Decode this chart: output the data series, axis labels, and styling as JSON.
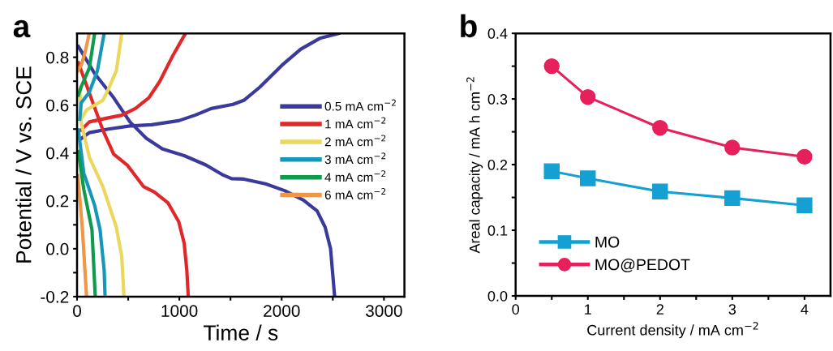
{
  "chart_data": [
    {
      "type": "line",
      "title": "a",
      "xlabel": "Time / s",
      "ylabel": "Potential / V vs. SCE",
      "xlim": [
        0,
        3200
      ],
      "ylim": [
        -0.2,
        0.9
      ],
      "xticks": [
        0,
        {
          "value": 500,
          "label": null
        },
        1000,
        {
          "value": 1500,
          "label": null
        },
        2000,
        {
          "value": 2500,
          "label": null
        },
        3000
      ],
      "yticks": [
        -0.2,
        {
          "value": -0.1,
          "label": null
        },
        {
          "value": 0,
          "label": "0.0"
        },
        {
          "value": 0.1,
          "label": null
        },
        0.2,
        {
          "value": 0.3,
          "label": null
        },
        0.4,
        {
          "value": 0.5,
          "label": null
        },
        0.6,
        {
          "value": 0.7,
          "label": null
        },
        0.8
      ],
      "grid": false,
      "legend": "right",
      "marker": "none",
      "line_style": "solid",
      "series": [
        {
          "name": "0.5 mA cm$^{−2}$",
          "color": "#3a3a9c",
          "x": [
            40,
            120,
            305,
            517,
            730,
            994,
            1153,
            1312,
            1524,
            1630,
            1789,
            2001,
            2187,
            2372,
            2558,
            null,
            13,
            172,
            358,
            517,
            676,
            835,
            1047,
            1259,
            1418,
            1511,
            1630,
            1842,
            2028,
            2213,
            2346,
            2425,
            2478,
            2518
          ],
          "values": [
            0.46,
            0.485,
            0.5,
            0.513,
            0.518,
            0.535,
            0.558,
            0.586,
            0.603,
            0.62,
            0.676,
            0.766,
            0.834,
            0.879,
            0.9,
            null,
            0.845,
            0.732,
            0.631,
            0.53,
            0.462,
            0.417,
            0.389,
            0.35,
            0.31,
            0.293,
            0.291,
            0.271,
            0.243,
            0.203,
            0.158,
            0.09,
            0.0,
            -0.2
          ]
        },
        {
          "name": "1 mA cm$^{−2}$",
          "color": "#e0282a",
          "x": [
            40,
            120,
            305,
            437,
            570,
            702,
            808,
            941,
            1060,
            null,
            13,
            146,
            252,
            358,
            490,
            649,
            755,
            888,
            994,
            1047,
            1073,
            1087
          ],
          "values": [
            0.496,
            0.53,
            0.547,
            0.558,
            0.586,
            0.631,
            0.699,
            0.811,
            0.9,
            null,
            0.777,
            0.62,
            0.496,
            0.395,
            0.35,
            0.26,
            0.237,
            0.192,
            0.113,
            0.023,
            -0.09,
            -0.2
          ]
        },
        {
          "name": "2 mA cm$^{−2}$",
          "color": "#ecd75e",
          "x": [
            40,
            93,
            252,
            305,
            384,
            437,
            null,
            27,
            40,
            120,
            252,
            305,
            384,
            437,
            459
          ],
          "values": [
            0.541,
            0.58,
            0.62,
            0.665,
            0.744,
            0.9,
            null,
            0.665,
            0.53,
            0.383,
            0.26,
            0.192,
            0.09,
            -0.033,
            -0.2
          ]
        },
        {
          "name": "3 mA cm$^{−2}$",
          "color": "#1797b8",
          "x": [
            27,
            40,
            120,
            199,
            265,
            null,
            13,
            66,
            172,
            225,
            265,
            273
          ],
          "values": [
            0.541,
            0.609,
            0.654,
            0.744,
            0.9,
            null,
            0.496,
            0.316,
            0.181,
            0.079,
            -0.09,
            -0.189
          ]
        },
        {
          "name": "4 mA cm$^{−2}$",
          "color": "#0e9b4e",
          "x": [
            13,
            40,
            120,
            172,
            null,
            13,
            66,
            146,
            178
          ],
          "values": [
            0.642,
            0.676,
            0.755,
            0.9,
            null,
            0.406,
            0.248,
            0.079,
            -0.2
          ]
        },
        {
          "name": "6 mA cm$^{−2}$",
          "color": "#ee9748",
          "x": [
            8,
            40,
            80,
            119,
            null,
            8,
            53,
            93
          ],
          "values": [
            0.744,
            0.766,
            0.823,
            0.9,
            null,
            0.305,
            0.079,
            -0.2
          ]
        }
      ]
    },
    {
      "type": "line",
      "title": "b",
      "xlabel": "Current density / mA cm$^{−2}$",
      "ylabel": "Areal capacity / mA h cm$^{−2}$",
      "xlim": [
        0,
        4.36
      ],
      "ylim": [
        0,
        0.4
      ],
      "xticks": [
        0,
        {
          "value": 0.5,
          "label": null
        },
        1,
        {
          "value": 1.5,
          "label": null
        },
        2,
        {
          "value": 2.5,
          "label": null
        },
        3,
        {
          "value": 3.5,
          "label": null
        },
        4
      ],
      "yticks": [
        {
          "value": 0,
          "label": "0.0"
        },
        {
          "value": 0.05,
          "label": null
        },
        0.1,
        {
          "value": 0.15,
          "label": null
        },
        0.2,
        {
          "value": 0.25,
          "label": null
        },
        0.3,
        {
          "value": 0.35,
          "label": null
        },
        0.4
      ],
      "grid": false,
      "legend": "lower left",
      "line_style": "solid",
      "x": [
        0.5,
        1,
        2,
        3,
        4
      ],
      "series": [
        {
          "name": "MO",
          "color": "#14a0d2",
          "marker": "square",
          "values": [
            0.19,
            0.179,
            0.159,
            0.149,
            0.138
          ]
        },
        {
          "name": "MO@PEDOT",
          "color": "#e5205b",
          "marker": "circle",
          "values": [
            0.35,
            0.303,
            0.256,
            0.226,
            0.212
          ]
        }
      ]
    }
  ]
}
